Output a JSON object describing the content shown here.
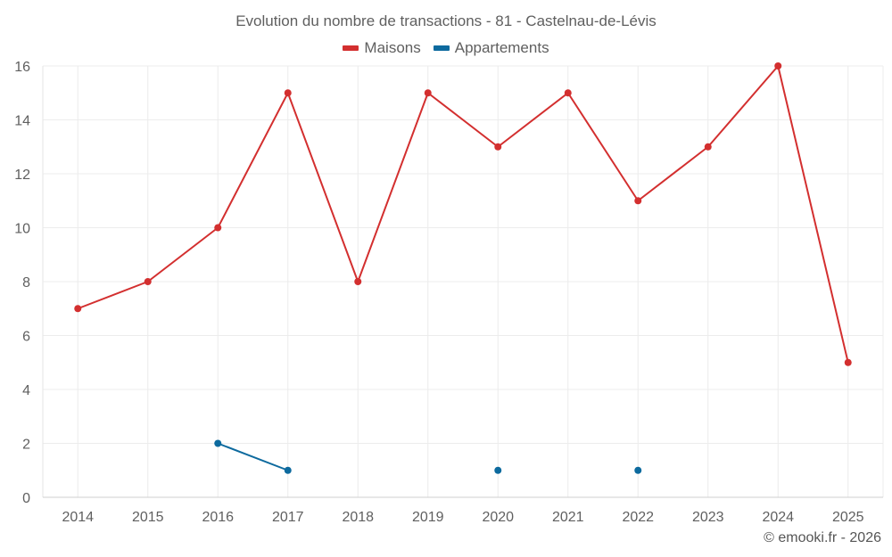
{
  "chart_data": {
    "type": "line",
    "title": "Evolution du nombre de transactions - 81 - Castelnau-de-Lévis",
    "categories": [
      "2014",
      "2015",
      "2016",
      "2017",
      "2018",
      "2019",
      "2020",
      "2021",
      "2022",
      "2023",
      "2024",
      "2025"
    ],
    "series": [
      {
        "name": "Maisons",
        "color": "#d32f2f",
        "values": [
          7,
          8,
          10,
          15,
          8,
          15,
          13,
          15,
          11,
          13,
          16,
          5
        ]
      },
      {
        "name": "Appartements",
        "color": "#0d6a9e",
        "values": [
          null,
          null,
          2,
          1,
          null,
          null,
          1,
          null,
          1,
          null,
          null,
          null
        ]
      }
    ],
    "ylim": [
      0,
      16
    ],
    "yticks": [
      0,
      2,
      4,
      6,
      8,
      10,
      12,
      14,
      16
    ],
    "xlabel": "",
    "ylabel": "",
    "grid": true,
    "legend": "top-center"
  },
  "credit": "© emooki.fr - 2026"
}
